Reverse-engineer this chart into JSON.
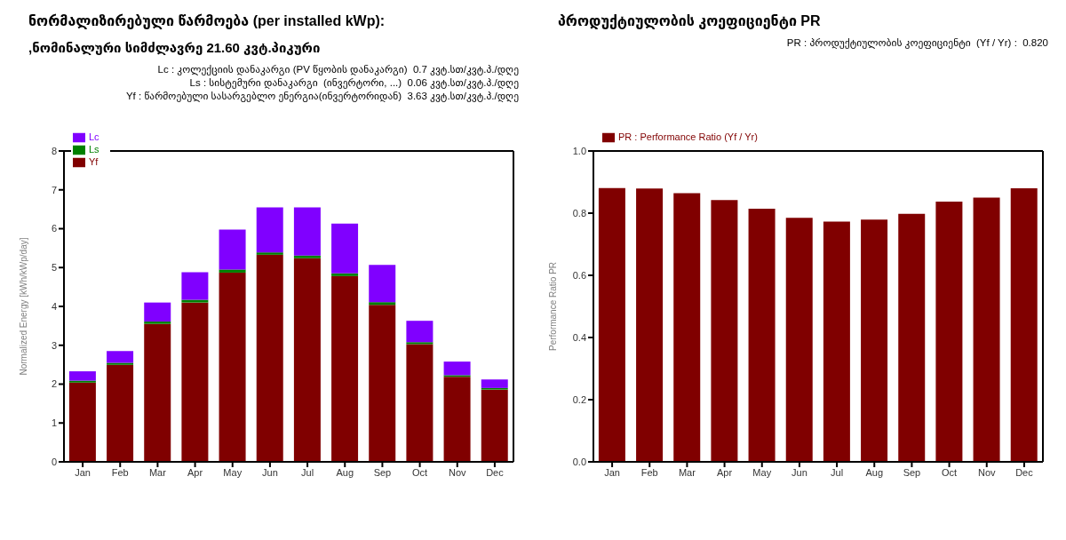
{
  "chart_data": [
    {
      "type": "bar",
      "title": "ნორმალიზირებული წარმოება (per installed kWp):",
      "subtitle": ",ნომინალური სიმძლავრე 21.60 კვტ.პიკური",
      "ylabel": "Normalized Energy [kWh/kWp/day]",
      "annotations": [
        "Lc : კოლექციის დანაკარგი (PV წყობის დანაკარგი)  0.7 კვტ.სთ/კვტ.პ./დღე",
        "Ls : სისტემური დანაკარგი  (ინვერტორი, ...)  0.06 კვტ.სთ/კვტ.პ./დღე",
        "Yf : წარმოებული სასარგებლო ენერგია(ინვერტორიდან)  3.63 კვტ.სთ/კვტ.პ./დღე"
      ],
      "categories": [
        "Jan",
        "Feb",
        "Mar",
        "Apr",
        "May",
        "Jun",
        "Jul",
        "Aug",
        "Sep",
        "Oct",
        "Nov",
        "Dec"
      ],
      "stacked": true,
      "series": [
        {
          "name": "Yf",
          "color": "#800000",
          "values": [
            2.04,
            2.5,
            3.55,
            4.1,
            4.87,
            5.33,
            5.24,
            4.78,
            4.04,
            3.03,
            2.19,
            1.86
          ]
        },
        {
          "name": "Ls",
          "color": "#008000",
          "values": [
            0.05,
            0.05,
            0.06,
            0.07,
            0.08,
            0.06,
            0.07,
            0.07,
            0.07,
            0.05,
            0.04,
            0.04
          ]
        },
        {
          "name": "Lc",
          "color": "#8000ff",
          "values": [
            0.24,
            0.3,
            0.49,
            0.71,
            1.03,
            1.16,
            1.24,
            1.28,
            0.96,
            0.55,
            0.35,
            0.22
          ]
        }
      ],
      "ylim": [
        0,
        8
      ],
      "yticks": [
        0,
        1,
        2,
        3,
        4,
        5,
        6,
        7,
        8
      ],
      "grid": false,
      "legend": "top left"
    },
    {
      "type": "bar",
      "title": "პროდუქტიულობის კოეფიციენტი PR",
      "ylabel": "Performance Ratio PR",
      "annotations": [
        "PR : პროდუქტიულობის კოეფიციენტი  (Yf / Yr) :  0.820"
      ],
      "categories": [
        "Jan",
        "Feb",
        "Mar",
        "Apr",
        "May",
        "Jun",
        "Jul",
        "Aug",
        "Sep",
        "Oct",
        "Nov",
        "Dec"
      ],
      "series": [
        {
          "name": "PR : Performance Ratio (Yf / Yr)",
          "color": "#800000",
          "values": [
            0.881,
            0.879,
            0.864,
            0.842,
            0.814,
            0.785,
            0.773,
            0.779,
            0.798,
            0.837,
            0.85,
            0.88
          ]
        }
      ],
      "ylim": [
        0,
        1
      ],
      "yticks": [
        {
          "value": 0,
          "label": "0.0"
        },
        {
          "value": 0.2,
          "label": "0.2"
        },
        {
          "value": 0.4,
          "label": "0.4"
        },
        {
          "value": 0.6,
          "label": "0.6"
        },
        {
          "value": 0.8,
          "label": "0.8"
        },
        {
          "value": 1,
          "label": "1.0"
        }
      ],
      "grid": false,
      "legend": "top left"
    }
  ]
}
